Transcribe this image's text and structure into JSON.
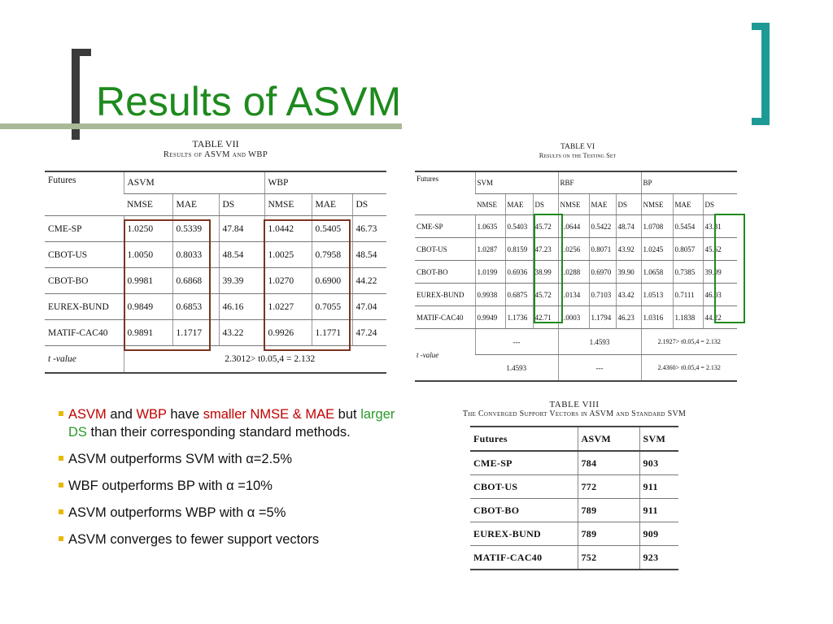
{
  "slide": {
    "title": "Results of ASVM"
  },
  "table7": {
    "caption_line1": "TABLE  VII",
    "caption_line2": "Results of ASVM and WBP",
    "col_futures": "Futures",
    "group1": "ASVM",
    "group2": "WBP",
    "subheaders": [
      "NMSE",
      "MAE",
      "DS",
      "NMSE",
      "MAE",
      "DS"
    ],
    "rows": [
      [
        "CME-SP",
        "1.0250",
        "0.5339",
        "47.84",
        "1.0442",
        "0.5405",
        "46.73"
      ],
      [
        "CBOT-US",
        "1.0050",
        "0.8033",
        "48.54",
        "1.0025",
        "0.7958",
        "48.54"
      ],
      [
        "CBOT-BO",
        "0.9981",
        "0.6868",
        "39.39",
        "1.0270",
        "0.6900",
        "44.22"
      ],
      [
        "EUREX-BUND",
        "0.9849",
        "0.6853",
        "46.16",
        "1.0227",
        "0.7055",
        "47.04"
      ],
      [
        "MATIF-CAC40",
        "0.9891",
        "1.1717",
        "43.22",
        "0.9926",
        "1.1771",
        "47.24"
      ]
    ],
    "tvalue_label": "t -value",
    "tvalue_text": "2.3012> t0.05,4 = 2.132"
  },
  "table6": {
    "caption_line1": "TABLE  VI",
    "caption_line2": "Results on the Testing Set",
    "col_futures": "Futures",
    "group1": "SVM",
    "group2": "RBF",
    "group3": "BP",
    "subheaders": [
      "NMSE",
      "MAE",
      "DS",
      "NMSE",
      "MAE",
      "DS",
      "NMSE",
      "MAE",
      "DS"
    ],
    "rows": [
      [
        "CME-SP",
        "1.0635",
        "0.5403",
        "45.72",
        "1.0644",
        "0.5422",
        "48.74",
        "1.0708",
        "0.5454",
        "43.31"
      ],
      [
        "CBOT-US",
        "1.0287",
        "0.8159",
        "47.23",
        "1.0256",
        "0.8071",
        "43.92",
        "1.0245",
        "0.8057",
        "45.62"
      ],
      [
        "CBOT-BO",
        "1.0199",
        "0.6936",
        "38.99",
        "1.0288",
        "0.6970",
        "39.90",
        "1.0658",
        "0.7385",
        "39.09"
      ],
      [
        "EUREX-BUND",
        "0.9938",
        "0.6875",
        "45.72",
        "1.0134",
        "0.7103",
        "43.42",
        "1.0513",
        "0.7111",
        "46.03"
      ],
      [
        "MATIF-CAC40",
        "0.9949",
        "1.1736",
        "42.71",
        "1.0003",
        "1.1794",
        "46.23",
        "1.0316",
        "1.1838",
        "44.22"
      ]
    ],
    "tvalue_label": "t -value",
    "tv_r1": [
      "---",
      "1.4593",
      "2.1927> t0.05,4 = 2.132"
    ],
    "tv_r2": [
      "1.4593",
      "---",
      "2.4360> t0.05,4 = 2.132"
    ]
  },
  "table8": {
    "caption_line1": "TABLE  VIII",
    "caption_line2": "The Converged Support Vectors in ASVM and Standard SVM",
    "headers": [
      "Futures",
      "ASVM",
      "SVM"
    ],
    "rows": [
      [
        "CME-SP",
        "784",
        "903"
      ],
      [
        "CBOT-US",
        "772",
        "911"
      ],
      [
        "CBOT-BO",
        "789",
        "911"
      ],
      [
        "EUREX-BUND",
        "789",
        "909"
      ],
      [
        "MATIF-CAC40",
        "752",
        "923"
      ]
    ]
  },
  "bullets": {
    "b1_asvm": "ASVM",
    "b1_and": " and ",
    "b1_wbp": "WBP",
    "b1_have": " have ",
    "b1_smaller": "smaller NMSE & MAE",
    "b1_but": " but ",
    "b1_larger": "larger DS",
    "b1_rest": " than their corresponding standard methods.",
    "b2": "ASVM outperforms SVM with α=2.5%",
    "b3": "WBF outperforms BP with α =10%",
    "b4": "ASVM outperforms WBP with α =5%",
    "b5": "ASVM converges to fewer support vectors"
  },
  "colors": {
    "title": "#1e8a1e",
    "accent_teal": "#1e9a96",
    "highlight_red": "#c00000",
    "highlight_green": "#2a9a2a",
    "bullet": "#e8b800"
  }
}
